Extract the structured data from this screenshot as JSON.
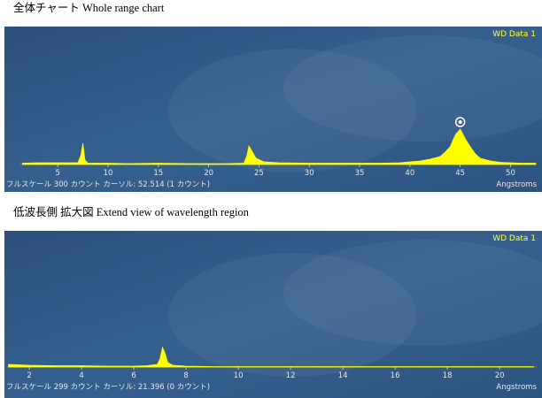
{
  "chart_data": [
    {
      "type": "area",
      "title": "全体チャート Whole range chart",
      "legend": "WD Data 1",
      "x_label": "Angstroms",
      "footer": "フルスケール 300 カウント カーソル: 52.514 (1 カウント)",
      "color": "#ffff00",
      "xlim": [
        1.2,
        52.6
      ],
      "xticks": [
        5,
        10,
        15,
        20,
        25,
        30,
        35,
        40,
        45,
        50
      ],
      "ylim": [
        0,
        300
      ],
      "x": [
        1.5,
        3,
        5,
        7,
        7.3,
        7.5,
        7.7,
        8,
        10,
        12,
        15,
        18,
        20,
        22,
        23.5,
        23.8,
        24,
        24.3,
        24.7,
        25.5,
        27,
        30,
        33,
        35,
        37,
        39,
        40,
        41,
        42,
        43,
        43.5,
        44,
        44.3,
        44.6,
        44.8,
        45,
        45.2,
        45.5,
        46,
        46.5,
        47,
        48,
        49,
        50,
        51,
        52.5
      ],
      "values": [
        3,
        4,
        4,
        4,
        20,
        48,
        10,
        3,
        3,
        2,
        3,
        2,
        2,
        2,
        3,
        20,
        42,
        30,
        14,
        6,
        4,
        3,
        3,
        3,
        3,
        4,
        6,
        8,
        12,
        18,
        28,
        40,
        56,
        70,
        74,
        80,
        72,
        58,
        40,
        24,
        14,
        8,
        5,
        4,
        3,
        3
      ]
    },
    {
      "type": "area",
      "title": "低波長側 拡大図 Extend view of wavelength region",
      "legend": "WD Data 1",
      "x_label": "Angstroms",
      "footer": "フルスケール 299 カウント カーソル: 21.396 (0 カウント)",
      "color": "#ffff00",
      "xlim": [
        1.15,
        21.42
      ],
      "xticks": [
        2,
        4,
        6,
        8,
        10,
        12,
        14,
        16,
        18,
        20
      ],
      "ylim": [
        0,
        299
      ],
      "x": [
        1.2,
        2,
        3,
        4,
        5,
        6,
        6.5,
        6.9,
        7.0,
        7.1,
        7.2,
        7.3,
        7.5,
        8,
        9,
        10,
        12,
        14,
        16,
        18,
        20,
        21.3
      ],
      "values": [
        6,
        4,
        3,
        3,
        2,
        2,
        3,
        6,
        18,
        44,
        30,
        10,
        4,
        2,
        1,
        1,
        1,
        1,
        1,
        1,
        1,
        1
      ]
    }
  ]
}
